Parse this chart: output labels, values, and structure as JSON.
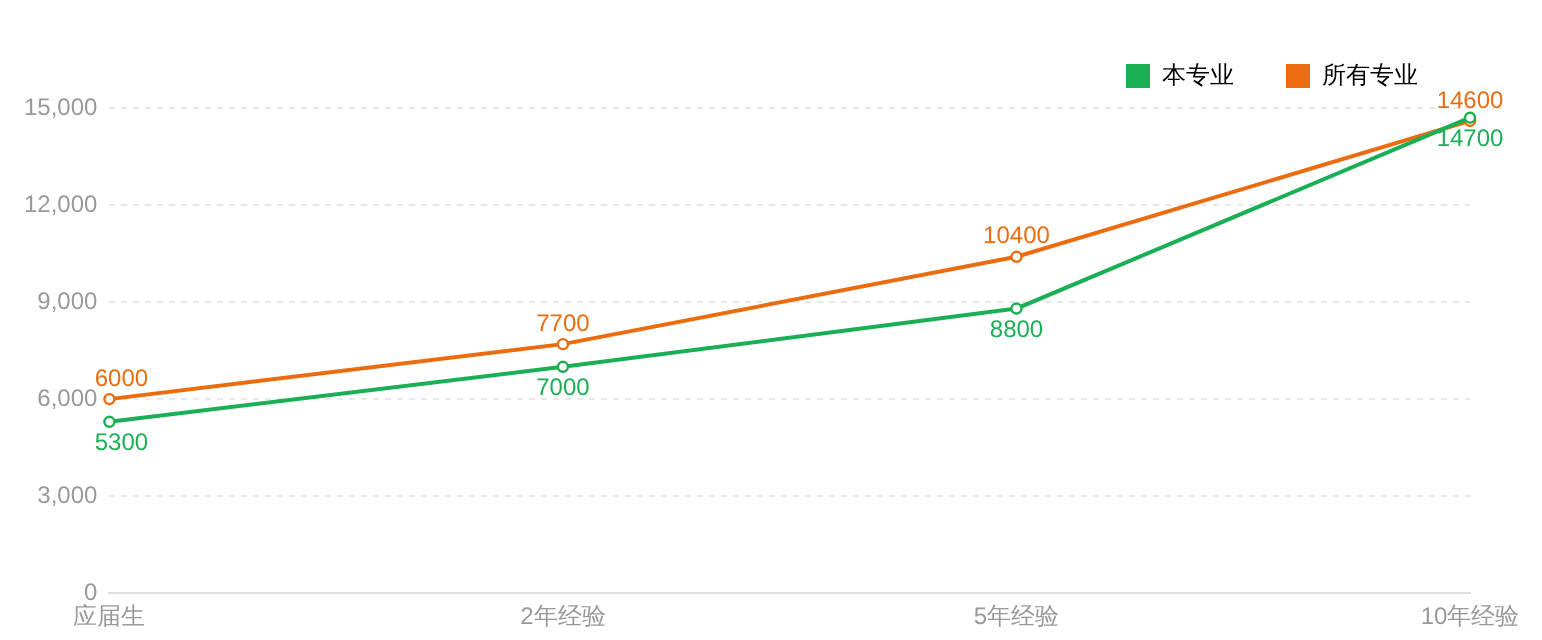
{
  "chart_data": {
    "type": "line",
    "categories": [
      "应届生",
      "2年经验",
      "5年经验",
      "10年经验"
    ],
    "series": [
      {
        "name": "本专业",
        "color": "#1aaf54",
        "values": [
          5300,
          7000,
          8800,
          14700
        ]
      },
      {
        "name": "所有专业",
        "color": "#eb6b0f",
        "values": [
          6000,
          7700,
          10400,
          14600
        ]
      }
    ],
    "ylim": [
      0,
      15000
    ],
    "yticks": [
      0,
      {
        "value": 3000,
        "label": "3,000"
      },
      {
        "value": 6000,
        "label": "6,000"
      },
      {
        "value": 9000,
        "label": "9,000"
      },
      {
        "value": 12000,
        "label": "12,000"
      },
      {
        "value": 15000,
        "label": "15,000"
      }
    ],
    "grid": "y",
    "legend": "top right",
    "marker": "circle",
    "line_style": "solid",
    "data_labels": true
  }
}
